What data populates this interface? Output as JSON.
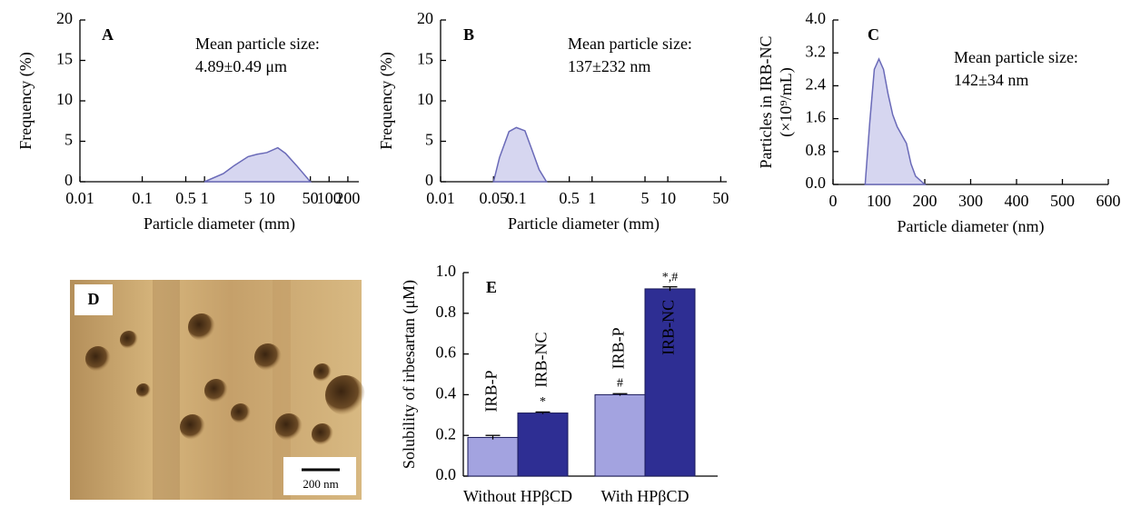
{
  "chart_data": [
    {
      "type": "area",
      "panel": "A",
      "log_x": true,
      "color": "#6a6ab8",
      "fill": "#d6d6f0",
      "ylabel": [
        "Frequency (%)"
      ],
      "xlabel": "Particle diameter (mm)",
      "annotations": [
        "Mean particle size:",
        "4.89±0.49 μm"
      ],
      "x": [
        1,
        2,
        3,
        5,
        7,
        10,
        15,
        20,
        30,
        50
      ],
      "values": [
        0,
        1,
        2,
        3.1,
        3.4,
        3.6,
        4.2,
        3.5,
        2,
        0
      ],
      "xlim": [
        0.01,
        300
      ],
      "xticks": [
        0.01,
        0.1,
        0.5,
        1,
        5,
        10,
        50,
        100,
        200
      ],
      "ylim": [
        0,
        20
      ],
      "yticks": [
        0,
        5,
        10,
        15,
        20
      ]
    },
    {
      "type": "area",
      "panel": "B",
      "log_x": true,
      "color": "#6a6ab8",
      "fill": "#d6d6f0",
      "ylabel": [
        "Frequency (%)"
      ],
      "xlabel": "Particle diameter (mm)",
      "annotations": [
        "Mean particle size:",
        "137±232 nm"
      ],
      "x": [
        0.05,
        0.06,
        0.08,
        0.1,
        0.13,
        0.16,
        0.2,
        0.25
      ],
      "values": [
        0,
        3,
        6.2,
        6.7,
        6.3,
        4,
        1.5,
        0
      ],
      "xlim": [
        0.01,
        60
      ],
      "xticks": [
        0.01,
        0.05,
        0.1,
        0.5,
        1,
        5,
        10,
        50
      ],
      "ylim": [
        0,
        20
      ],
      "yticks": [
        0,
        5,
        10,
        15,
        20
      ]
    },
    {
      "type": "area",
      "panel": "C",
      "log_x": false,
      "color": "#6a6ab8",
      "fill": "#d6d6f0",
      "ylabel": [
        "Particles in IRB-NC",
        "(×10⁹/mL)"
      ],
      "xlabel": "Particle diameter (nm)",
      "annotations": [
        "Mean particle size:",
        "142±34 nm"
      ],
      "x": [
        70,
        80,
        90,
        100,
        110,
        120,
        130,
        140,
        150,
        160,
        170,
        180,
        200
      ],
      "values": [
        0,
        1.5,
        2.8,
        3.05,
        2.8,
        2.2,
        1.7,
        1.4,
        1.2,
        1.0,
        0.5,
        0.2,
        0
      ],
      "xlim": [
        0,
        600
      ],
      "xticks": [
        0,
        100,
        200,
        300,
        400,
        500,
        600
      ],
      "ylim": [
        0,
        4.0
      ],
      "yticks": [
        {
          "value": 0,
          "label": "0.0"
        },
        0.8,
        1.6,
        2.4,
        3.2,
        {
          "value": 4,
          "label": "4.0"
        }
      ]
    },
    {
      "type": "bar",
      "panel": "E",
      "ylabel": [
        "Solubility of irbesartan (μM)"
      ],
      "categories": [
        "Without HPβCD",
        "With HPβCD"
      ],
      "series": [
        {
          "name": "IRB-P",
          "color": "#a3a3e0",
          "values": [
            0.19,
            0.4
          ],
          "errors": [
            0.01,
            0.005
          ],
          "marks": [
            null,
            "#"
          ]
        },
        {
          "name": "IRB-NC",
          "color": "#2e2e93",
          "values": [
            0.31,
            0.92
          ],
          "errors": [
            0.005,
            0.01
          ],
          "marks": [
            "*",
            "*,#"
          ]
        }
      ],
      "ylim": [
        0,
        1.0
      ],
      "yticks": [
        {
          "value": 0,
          "label": "0.0"
        },
        0.2,
        0.4,
        0.6,
        0.8,
        {
          "value": 1,
          "label": "1.0"
        }
      ]
    }
  ],
  "image_panel": {
    "label": "D",
    "scale_bar": "200 nm"
  }
}
